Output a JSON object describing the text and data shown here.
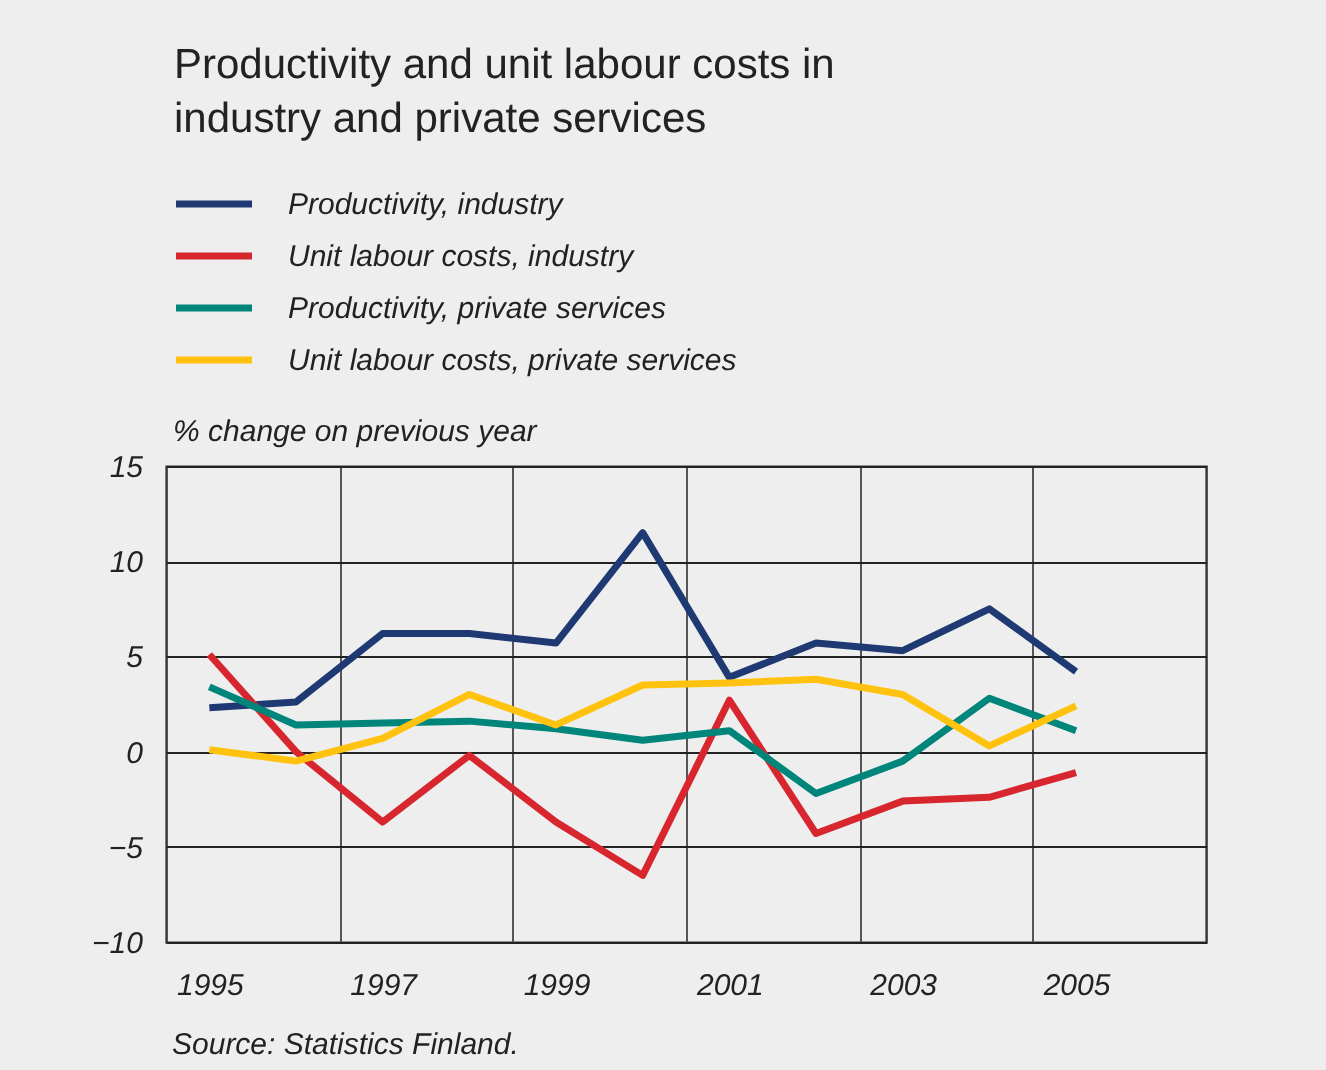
{
  "chart_data": {
    "type": "line",
    "title": "Productivity and unit labour costs in industry and private services",
    "ylabel": "% change on previous year",
    "x": [
      1995,
      1996,
      1997,
      1998,
      1999,
      2000,
      2001,
      2002,
      2003,
      2004,
      2005
    ],
    "series": [
      {
        "name": "Productivity, industry",
        "color": "#1f3a73",
        "values": [
          2.3,
          2.6,
          6.2,
          6.2,
          5.7,
          11.5,
          3.9,
          5.7,
          5.3,
          7.5,
          4.2
        ]
      },
      {
        "name": "Unit labour costs, industry",
        "color": "#d7262e",
        "values": [
          5.1,
          0,
          -3.7,
          -0.2,
          -3.7,
          -6.5,
          2.7,
          -4.3,
          -2.6,
          -2.4,
          -1.1
        ]
      },
      {
        "name": "Productivity, private services",
        "color": "#00857a",
        "values": [
          3.4,
          1.4,
          1.5,
          1.6,
          1.2,
          0.6,
          1.1,
          -2.2,
          -0.5,
          2.8,
          1.1
        ]
      },
      {
        "name": "Unit labour costs, private services",
        "color": "#ffc20e",
        "values": [
          0.1,
          -0.5,
          0.7,
          3.0,
          1.4,
          3.5,
          3.6,
          3.8,
          3.0,
          0.3,
          2.4
        ]
      }
    ],
    "xlim": [
      1994.5,
      2006.5
    ],
    "xticks": [
      1995,
      1997,
      1999,
      2001,
      2003,
      2005,
      {
        "value": 1996.5,
        "label": null
      },
      {
        "value": 1998.5,
        "label": null
      },
      {
        "value": 2000.5,
        "label": null
      },
      {
        "value": 2002.5,
        "label": null
      },
      {
        "value": 2004.5,
        "label": null
      }
    ],
    "ylim": [
      -10,
      15
    ],
    "yticks": [
      -10,
      -5,
      0,
      5,
      10,
      15
    ],
    "grid": true,
    "legend": "top left",
    "marker": "none",
    "line_style": "solid",
    "annotations": [
      "Source: Statistics Finland."
    ]
  }
}
